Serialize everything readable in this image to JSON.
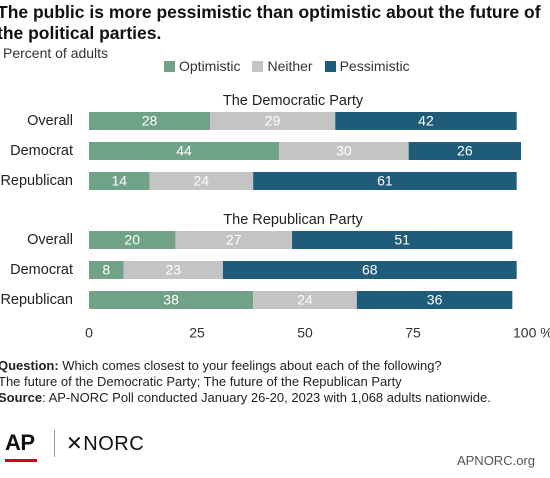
{
  "header": {
    "title": "The public is more pessimistic than optimistic about the future of the political parties.",
    "subtitle": "Percent of adults"
  },
  "legend": [
    {
      "label": "Optimistic",
      "color": "#6fa287"
    },
    {
      "label": "Neither",
      "color": "#c4c4c4"
    },
    {
      "label": "Pessimistic",
      "color": "#1f5c7a"
    }
  ],
  "chart_data": {
    "type": "bar",
    "orientation": "horizontal",
    "stacked": true,
    "xlim": [
      0,
      100
    ],
    "x_ticks": [
      "0",
      "25",
      "50",
      "75",
      "100 %"
    ],
    "grid": false,
    "legend_position": "top",
    "series_names": [
      "Optimistic",
      "Neither",
      "Pessimistic"
    ],
    "colors": [
      "#6fa287",
      "#c4c4c4",
      "#1f5c7a"
    ],
    "groups": [
      {
        "title": "The Democratic Party",
        "rows": [
          {
            "label": "Overall",
            "values": [
              28,
              29,
              42
            ]
          },
          {
            "label": "Democrat",
            "values": [
              44,
              30,
              26
            ]
          },
          {
            "label": "Republican",
            "values": [
              14,
              24,
              61
            ]
          }
        ]
      },
      {
        "title": "The Republican Party",
        "rows": [
          {
            "label": "Overall",
            "values": [
              20,
              27,
              51
            ]
          },
          {
            "label": "Democrat",
            "values": [
              8,
              23,
              68
            ]
          },
          {
            "label": "Republican",
            "values": [
              38,
              24,
              36
            ]
          }
        ]
      }
    ]
  },
  "notes": {
    "question_label": "Question:",
    "question_text": " Which comes closest to your feelings about each of the following?",
    "question_line2": "The future of the Democratic Party; The future of the Republican Party",
    "source_label": "Source",
    "source_text": ": AP-NORC Poll conducted January 26-20, 2023 with 1,068 adults nationwide."
  },
  "footer": {
    "ap_logo": "AP",
    "norc_logo": "✕NORC",
    "site": "APNORC.org"
  }
}
